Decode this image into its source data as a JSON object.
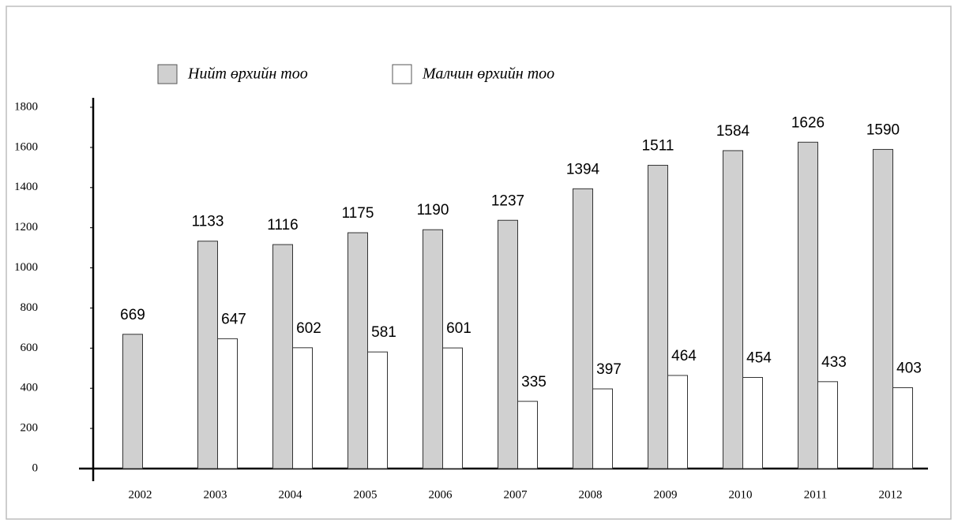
{
  "chart_data": {
    "type": "bar",
    "categories": [
      "2002",
      "2003",
      "2004",
      "2005",
      "2006",
      "2007",
      "2008",
      "2009",
      "2010",
      "2011",
      "2012"
    ],
    "series": [
      {
        "name": "Нийт өрхийн тоо",
        "color": "#d0d0d0",
        "values": [
          669,
          1133,
          1116,
          1175,
          1190,
          1237,
          1394,
          1511,
          1584,
          1626,
          1590
        ]
      },
      {
        "name": "Малчин өрхийн тоо",
        "color": "#ffffff",
        "values": [
          null,
          647,
          602,
          581,
          601,
          335,
          397,
          464,
          454,
          433,
          403
        ]
      }
    ],
    "ylim": [
      0,
      1800
    ],
    "yticks": [
      0,
      200,
      400,
      600,
      800,
      1000,
      1200,
      1400,
      1600,
      1800
    ]
  }
}
